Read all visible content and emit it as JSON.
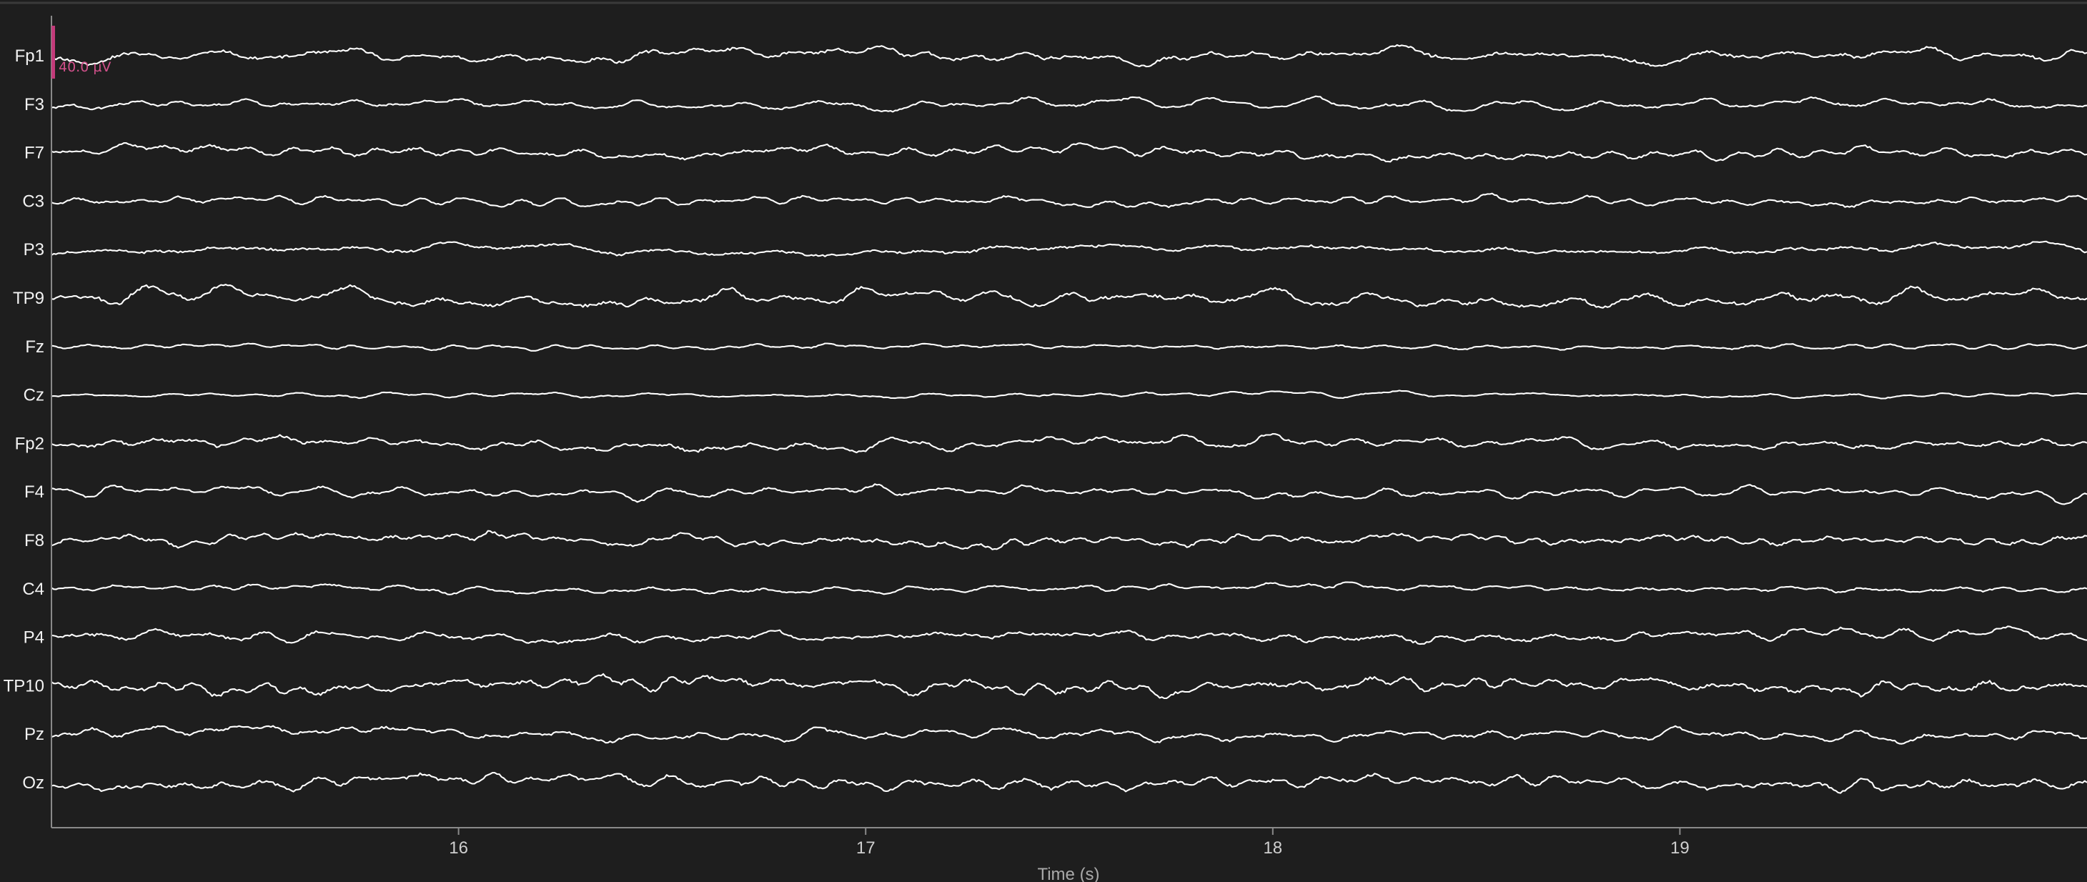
{
  "chart_data": {
    "type": "line",
    "xlabel": "Time (s)",
    "xlim": [
      15.0,
      20.0
    ],
    "x_ticks": [
      16,
      17,
      18,
      19
    ],
    "x_tick_labels": [
      "16",
      "17",
      "18",
      "19"
    ],
    "grid": false,
    "scale_bar": {
      "label": "40.0 µV",
      "value_uv": 40.0
    },
    "channels": [
      {
        "name": "Fp1",
        "amplitude_uv": 18,
        "seed": 11
      },
      {
        "name": "F3",
        "amplitude_uv": 12,
        "seed": 23
      },
      {
        "name": "F7",
        "amplitude_uv": 15,
        "seed": 37
      },
      {
        "name": "C3",
        "amplitude_uv": 11,
        "seed": 41
      },
      {
        "name": "P3",
        "amplitude_uv": 15,
        "seed": 53
      },
      {
        "name": "TP9",
        "amplitude_uv": 20,
        "seed": 67
      },
      {
        "name": "Fz",
        "amplitude_uv": 7,
        "seed": 71
      },
      {
        "name": "Cz",
        "amplitude_uv": 6,
        "seed": 83
      },
      {
        "name": "Fp2",
        "amplitude_uv": 16,
        "seed": 97
      },
      {
        "name": "F4",
        "amplitude_uv": 12,
        "seed": 101
      },
      {
        "name": "F8",
        "amplitude_uv": 16,
        "seed": 113
      },
      {
        "name": "C4",
        "amplitude_uv": 10,
        "seed": 127
      },
      {
        "name": "P4",
        "amplitude_uv": 16,
        "seed": 131
      },
      {
        "name": "TP10",
        "amplitude_uv": 20,
        "seed": 149
      },
      {
        "name": "Pz",
        "amplitude_uv": 15,
        "seed": 151
      },
      {
        "name": "Oz",
        "amplitude_uv": 18,
        "seed": 163
      }
    ]
  },
  "colors": {
    "background": "#1e1e1e",
    "trace": "#ffffff",
    "axis": "#8a8a8a",
    "scale_bar": "#c23b7a"
  }
}
